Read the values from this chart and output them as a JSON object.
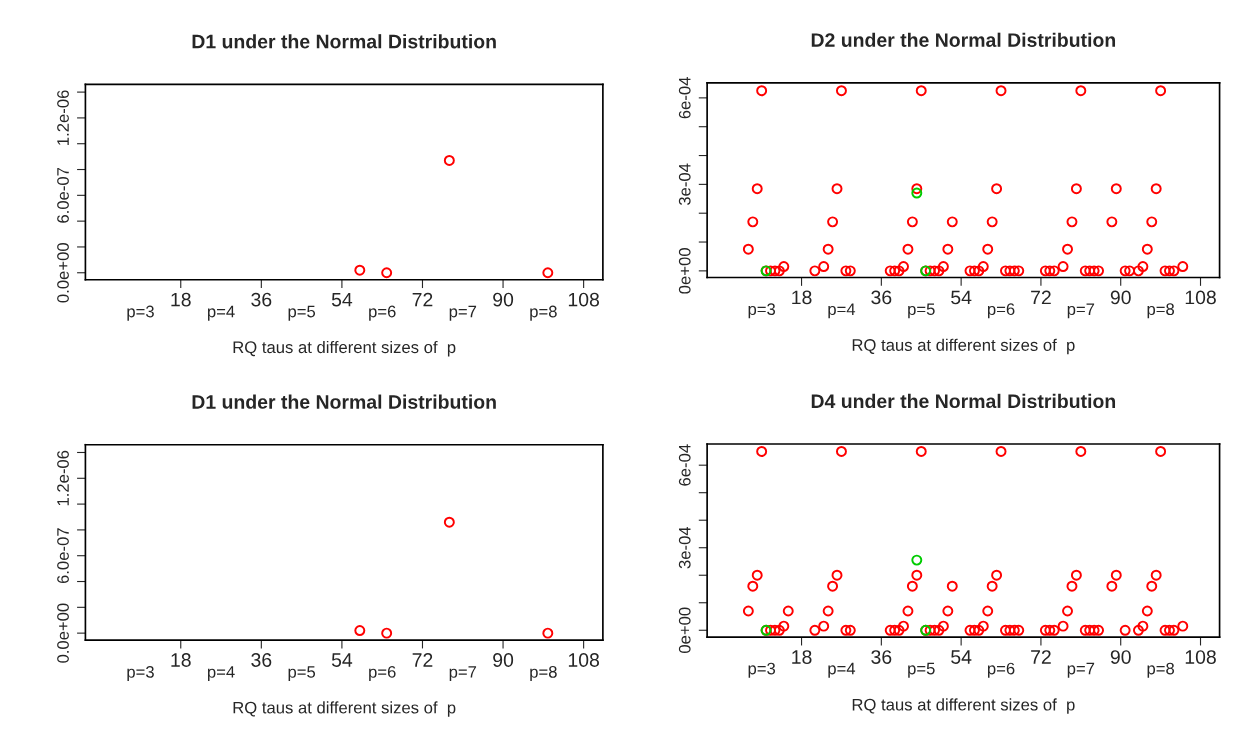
{
  "chart_data": [
    {
      "type": "scatter",
      "title": "D1 under the Normal Distribution",
      "xlabel": "RQ taus at different sizes of  p",
      "series": [
        {
          "color": "#ff0000",
          "x": [
            58,
            64,
            78,
            100
          ],
          "values": [
            2e-08,
            0,
            8.7e-07,
            0
          ]
        }
      ],
      "xlim": [
        -3.3,
        112.3
      ],
      "xticks": [
        18,
        36,
        54,
        72,
        90,
        108
      ],
      "ylim": [
        -5.4e-08,
        1.46e-06
      ],
      "yticks": [
        {
          "value": 0,
          "label": "0.0e+00"
        },
        {
          "value": 2e-07,
          "label": null
        },
        {
          "value": 4e-07,
          "label": null
        },
        {
          "value": 6e-07,
          "label": "6.0e-07"
        },
        {
          "value": 8e-07,
          "label": null
        },
        {
          "value": 1e-06,
          "label": null
        },
        {
          "value": 1.2e-06,
          "label": "1.2e-06"
        },
        {
          "value": 1.4e-06,
          "label": null
        }
      ],
      "annotations": [
        "p=3",
        "p=4",
        "p=5",
        "p=6",
        "p=7",
        "p=8"
      ],
      "marker": "circle",
      "grid": false
    },
    {
      "type": "scatter",
      "title": "D2 under the Normal Distribution",
      "xlabel": "RQ taus at different sizes of  p",
      "series": [
        {
          "color": "#ff0000",
          "x": [
            6,
            7,
            8,
            9,
            10,
            11,
            12,
            13,
            14,
            21,
            23,
            24,
            25,
            26,
            27,
            28,
            29,
            38,
            39,
            40,
            41,
            42,
            43,
            44,
            45,
            46,
            47,
            48,
            49,
            50,
            51,
            52,
            56,
            57,
            58,
            59,
            60,
            61,
            62,
            63,
            64,
            65,
            66,
            67,
            73,
            74,
            75,
            77,
            78,
            79,
            80,
            81,
            82,
            83,
            84,
            85,
            88,
            89,
            91,
            92,
            94,
            95,
            96,
            97,
            98,
            99,
            100,
            101,
            102,
            104
          ],
          "values": [
            7.5e-05,
            0.00017,
            0.000285,
            0.000625,
            0,
            0,
            0,
            0,
            1.5e-05,
            0,
            1.5e-05,
            7.5e-05,
            0.00017,
            0.000285,
            0.000625,
            0,
            0,
            0,
            0,
            0,
            1.5e-05,
            7.5e-05,
            0.00017,
            0.000285,
            0.000625,
            0,
            0,
            0,
            0,
            1.5e-05,
            7.5e-05,
            0.00017,
            0,
            0,
            0,
            1.5e-05,
            7.5e-05,
            0.00017,
            0.000285,
            0.000625,
            0,
            0,
            0,
            0,
            0,
            0,
            0,
            1.5e-05,
            7.5e-05,
            0.00017,
            0.000285,
            0.000625,
            0,
            0,
            0,
            0,
            0.00017,
            0.000285,
            0,
            0,
            0,
            1.5e-05,
            7.5e-05,
            0.00017,
            0.000285,
            0.000625,
            0,
            0,
            0,
            1.5e-05
          ]
        },
        {
          "color": "#00cc00",
          "x": [
            10,
            44,
            46
          ],
          "values": [
            0,
            0.00027,
            0
          ]
        }
      ],
      "xlim": [
        -3.3,
        112.3
      ],
      "xticks": [
        18,
        36,
        54,
        72,
        90,
        108
      ],
      "ylim": [
        -2.3e-05,
        0.000652
      ],
      "yticks": [
        {
          "value": 0,
          "label": "0e+00"
        },
        {
          "value": 0.0001,
          "label": null
        },
        {
          "value": 0.0002,
          "label": null
        },
        {
          "value": 0.0003,
          "label": "3e-04"
        },
        {
          "value": 0.0004,
          "label": null
        },
        {
          "value": 0.0005,
          "label": null
        },
        {
          "value": 0.0006,
          "label": "6e-04"
        }
      ],
      "annotations": [
        "p=3",
        "p=4",
        "p=5",
        "p=6",
        "p=7",
        "p=8"
      ],
      "marker": "circle",
      "grid": false
    },
    {
      "type": "scatter",
      "title": "D1 under the Normal Distribution",
      "xlabel": "RQ taus at different sizes of  p",
      "series": [
        {
          "color": "#ff0000",
          "x": [
            58,
            64,
            78,
            100
          ],
          "values": [
            2e-08,
            0,
            8.6e-07,
            0
          ]
        }
      ],
      "xlim": [
        -3.3,
        112.3
      ],
      "xticks": [
        18,
        36,
        54,
        72,
        90,
        108
      ],
      "ylim": [
        -5.4e-08,
        1.46e-06
      ],
      "yticks": [
        {
          "value": 0,
          "label": "0.0e+00"
        },
        {
          "value": 2e-07,
          "label": null
        },
        {
          "value": 4e-07,
          "label": null
        },
        {
          "value": 6e-07,
          "label": "6.0e-07"
        },
        {
          "value": 8e-07,
          "label": null
        },
        {
          "value": 1e-06,
          "label": null
        },
        {
          "value": 1.2e-06,
          "label": "1.2e-06"
        },
        {
          "value": 1.4e-06,
          "label": null
        }
      ],
      "annotations": [
        "p=3",
        "p=4",
        "p=5",
        "p=6",
        "p=7",
        "p=8"
      ],
      "marker": "circle",
      "grid": false
    },
    {
      "type": "scatter",
      "title": "D4 under the Normal Distribution",
      "xlabel": "RQ taus at different sizes of  p",
      "series": [
        {
          "color": "#ff0000",
          "x": [
            6,
            7,
            8,
            9,
            10,
            11,
            12,
            13,
            14,
            15,
            21,
            23,
            24,
            25,
            26,
            27,
            28,
            29,
            38,
            39,
            40,
            41,
            42,
            43,
            44,
            45,
            46,
            47,
            48,
            49,
            50,
            51,
            52,
            56,
            57,
            58,
            59,
            60,
            61,
            62,
            63,
            64,
            65,
            66,
            67,
            73,
            74,
            75,
            77,
            78,
            79,
            80,
            81,
            82,
            83,
            84,
            85,
            88,
            89,
            91,
            94,
            95,
            96,
            97,
            98,
            99,
            100,
            101,
            102,
            104
          ],
          "values": [
            7e-05,
            0.00016,
            0.0002,
            0.00065,
            0,
            0,
            0,
            0,
            1.5e-05,
            7e-05,
            0,
            1.5e-05,
            7e-05,
            0.00016,
            0.0002,
            0.00065,
            0,
            0,
            0,
            0,
            0,
            1.5e-05,
            7e-05,
            0.00016,
            0.0002,
            0.00065,
            0,
            0,
            0,
            0,
            1.5e-05,
            7e-05,
            0.00016,
            0,
            0,
            0,
            1.5e-05,
            7e-05,
            0.00016,
            0.0002,
            0.00065,
            0,
            0,
            0,
            0,
            0,
            0,
            0,
            1.5e-05,
            7e-05,
            0.00016,
            0.0002,
            0.00065,
            0,
            0,
            0,
            0,
            0.00016,
            0.0002,
            0,
            0,
            1.5e-05,
            7e-05,
            0.00016,
            0.0002,
            0.00065,
            0,
            0,
            0,
            1.5e-05
          ]
        },
        {
          "color": "#00cc00",
          "x": [
            10,
            44,
            46
          ],
          "values": [
            0,
            0.000255,
            0
          ]
        }
      ],
      "xlim": [
        -3.3,
        112.3
      ],
      "xticks": [
        18,
        36,
        54,
        72,
        90,
        108
      ],
      "ylim": [
        -2.5e-05,
        0.000677
      ],
      "yticks": [
        {
          "value": 0,
          "label": "0e+00"
        },
        {
          "value": 0.0001,
          "label": null
        },
        {
          "value": 0.0002,
          "label": null
        },
        {
          "value": 0.0003,
          "label": "3e-04"
        },
        {
          "value": 0.0004,
          "label": null
        },
        {
          "value": 0.0005,
          "label": null
        },
        {
          "value": 0.0006,
          "label": "6e-04"
        }
      ],
      "annotations": [
        "p=3",
        "p=4",
        "p=5",
        "p=6",
        "p=7",
        "p=8"
      ],
      "marker": "circle",
      "grid": false
    }
  ]
}
